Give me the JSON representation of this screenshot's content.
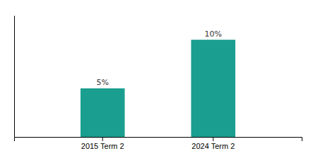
{
  "chart_data": {
    "type": "bar",
    "categories": [
      "2015 Term 2",
      "2024 Term 2"
    ],
    "values": [
      5,
      10
    ],
    "value_labels": [
      "5%",
      "10%"
    ],
    "color": "#1a9e8f",
    "ylim": [
      0,
      12.5
    ],
    "data_labels": true,
    "tick_labels": "x",
    "grid": false
  }
}
